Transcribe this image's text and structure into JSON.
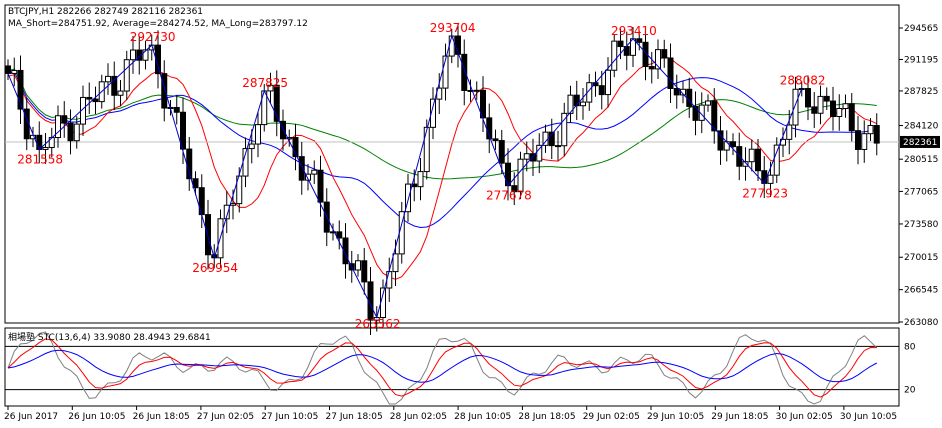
{
  "chart_data": {
    "type": "candlestick",
    "symbol_line": "BTCJPY,H1  282266 282749 282116 282361",
    "ma_line": "MA_Short=284751.92,  Average=284274.52,  MA_Long=283797.12",
    "current_price": "282361",
    "price_axis_ticks": [
      "294565",
      "291195",
      "287825",
      "284120",
      "280515",
      "277065",
      "273580",
      "270015",
      "266545",
      "263080"
    ],
    "price_tick_values": [
      294565,
      291195,
      287825,
      284120,
      280515,
      277065,
      273580,
      270015,
      266545,
      263080
    ],
    "x_axis_labels": [
      "26 Jun 2017",
      "26 Jun 10:05",
      "26 Jun 18:05",
      "27 Jun 02:05",
      "27 Jun 10:05",
      "27 Jun 18:05",
      "28 Jun 02:05",
      "28 Jun 10:05",
      "28 Jun 18:05",
      "29 Jun 02:05",
      "29 Jun 10:05",
      "29 Jun 18:05",
      "30 Jun 02:05",
      "30 Jun 10:05"
    ],
    "zigzag_points": [
      {
        "bar": 0,
        "price": 289700,
        "label": ""
      },
      {
        "bar": 5,
        "price": 281558,
        "label": "281558"
      },
      {
        "bar": 23,
        "price": 292730,
        "label": "292730"
      },
      {
        "bar": 33,
        "price": 269954,
        "label": "269954"
      },
      {
        "bar": 41,
        "price": 287825,
        "label": "287825"
      },
      {
        "bar": 59,
        "price": 263562,
        "label": "263562"
      },
      {
        "bar": 71,
        "price": 293704,
        "label": "293704"
      },
      {
        "bar": 80,
        "price": 277678,
        "label": "277678"
      },
      {
        "bar": 100,
        "price": 293410,
        "label": "293410"
      },
      {
        "bar": 121,
        "price": 277923,
        "label": "277923"
      },
      {
        "bar": 127,
        "price": 288082,
        "label": "288082"
      }
    ],
    "indicator": {
      "title": "相場塾 STC(13,6,4) 33.9080 28.4943 29.6841",
      "levels": [
        "80",
        "20"
      ],
      "level_values": [
        80,
        20
      ],
      "range": [
        0,
        100
      ]
    },
    "colors": {
      "ma_short": "#ff0000",
      "ma_average": "#0000ff",
      "ma_long": "#008000",
      "zigzag": "#0000c8",
      "bull_body": "#ffffff",
      "bear_body": "#000000",
      "stc_main": "#808080",
      "stc_signal1": "#ff0000",
      "stc_signal2": "#0000ff"
    }
  }
}
